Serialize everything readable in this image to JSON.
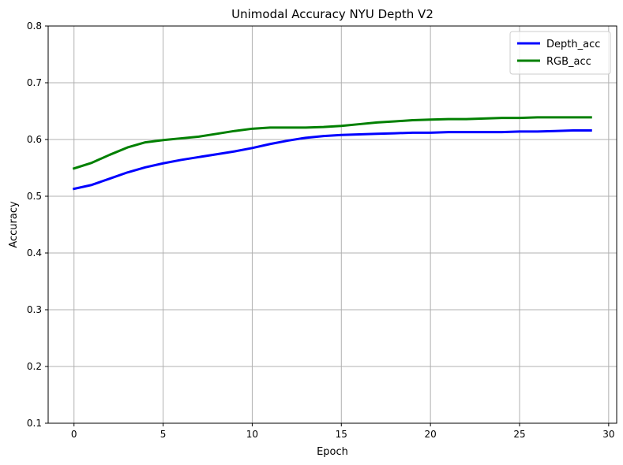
{
  "chart_data": {
    "type": "line",
    "title": "Unimodal Accuracy NYU Depth V2",
    "xlabel": "Epoch",
    "ylabel": "Accuracy",
    "xlim": [
      -1.45,
      30.45
    ],
    "ylim": [
      0.1,
      0.8
    ],
    "xticks": [
      0,
      5,
      10,
      15,
      20,
      25,
      30
    ],
    "yticks": [
      0.1,
      0.2,
      0.3,
      0.4,
      0.5,
      0.6,
      0.7,
      0.8
    ],
    "xtick_labels": [
      "0",
      "5",
      "10",
      "15",
      "20",
      "25",
      "30"
    ],
    "ytick_labels": [
      "0.1",
      "0.2",
      "0.3",
      "0.4",
      "0.5",
      "0.6",
      "0.7",
      "0.8"
    ],
    "grid": true,
    "legend_position": "top-right",
    "x": [
      0,
      1,
      2,
      3,
      4,
      5,
      6,
      7,
      8,
      9,
      10,
      11,
      12,
      13,
      14,
      15,
      16,
      17,
      18,
      19,
      20,
      21,
      22,
      23,
      24,
      25,
      26,
      27,
      28,
      29
    ],
    "series": [
      {
        "name": "Depth_acc",
        "color": "#0000ff",
        "values": [
          0.513,
          0.52,
          0.531,
          0.542,
          0.551,
          0.558,
          0.564,
          0.569,
          0.574,
          0.579,
          0.585,
          0.592,
          0.598,
          0.603,
          0.606,
          0.608,
          0.609,
          0.61,
          0.611,
          0.612,
          0.612,
          0.613,
          0.613,
          0.613,
          0.613,
          0.614,
          0.614,
          0.615,
          0.616,
          0.616
        ]
      },
      {
        "name": "RGB_acc",
        "color": "#008000",
        "values": [
          0.549,
          0.559,
          0.573,
          0.586,
          0.595,
          0.599,
          0.602,
          0.605,
          0.61,
          0.615,
          0.619,
          0.621,
          0.621,
          0.621,
          0.622,
          0.624,
          0.627,
          0.63,
          0.632,
          0.634,
          0.635,
          0.636,
          0.636,
          0.637,
          0.638,
          0.638,
          0.639,
          0.639,
          0.639,
          0.639
        ]
      }
    ]
  }
}
